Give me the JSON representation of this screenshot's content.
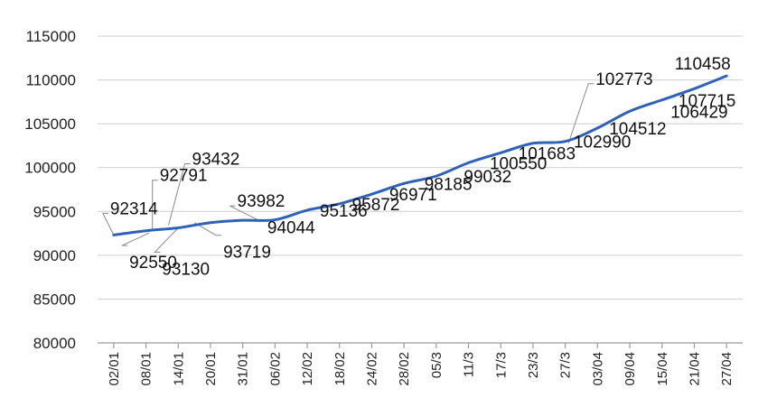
{
  "chart_data": {
    "type": "line",
    "title": "",
    "xlabel": "",
    "ylabel": "",
    "ylim": [
      80000,
      115000
    ],
    "yticks": [
      "115000",
      "110000",
      "105000",
      "100000",
      "95000",
      "90000",
      "85000",
      "80000"
    ],
    "grid": true,
    "legend": "none",
    "color": "#2e62b8",
    "categories": [
      "02/01",
      "08/01",
      "14/01",
      "20/01",
      "31/01",
      "06/02",
      "12/02",
      "18/02",
      "24/02",
      "28/02",
      "05/3",
      "11/3",
      "17/3",
      "23/3",
      "27/3",
      "03/04",
      "09/04",
      "15/04",
      "21/04",
      "27/04"
    ],
    "values": [
      92314,
      92791,
      93130,
      93719,
      93982,
      94044,
      95136,
      95872,
      96971,
      98185,
      99032,
      100550,
      101683,
      102773,
      102990,
      104512,
      106429,
      107715,
      109000,
      110458
    ],
    "data_labels": [
      {
        "text": "92314",
        "index": 0,
        "value": 92314
      },
      {
        "text": "92791",
        "index": 1.2,
        "value": 92791
      },
      {
        "text": "92550",
        "index": 1.1,
        "value": 92550
      },
      {
        "text": "93432",
        "index": 1.7,
        "value": 93432
      },
      {
        "text": "93130",
        "index": 2.0,
        "value": 93130
      },
      {
        "text": "93719",
        "index": 2.5,
        "value": 93719
      },
      {
        "text": "93982",
        "index": 4.5,
        "value": 93982
      },
      {
        "text": "94044",
        "index": 5.1,
        "value": 94044
      },
      {
        "text": "95136",
        "index": 6.5,
        "value": 95136
      },
      {
        "text": "95872",
        "index": 7.5,
        "value": 95872
      },
      {
        "text": "96971",
        "index": 8.6,
        "value": 96971
      },
      {
        "text": "98185",
        "index": 9.8,
        "value": 98185
      },
      {
        "text": "99032",
        "index": 10.8,
        "value": 99032
      },
      {
        "text": "100550",
        "index": 11.6,
        "value": 100550
      },
      {
        "text": "101683",
        "index": 12.6,
        "value": 101683
      },
      {
        "text": "102773",
        "index": 14.1,
        "value": 102773
      },
      {
        "text": "102990",
        "index": 13.7,
        "value": 102990
      },
      {
        "text": "104512",
        "index": 14.8,
        "value": 104512
      },
      {
        "text": "106429",
        "index": 16.2,
        "value": 106429
      },
      {
        "text": "107715",
        "index": 16.5,
        "value": 107715
      },
      {
        "text": "110458",
        "index": 17.0,
        "value": 110458
      }
    ]
  }
}
